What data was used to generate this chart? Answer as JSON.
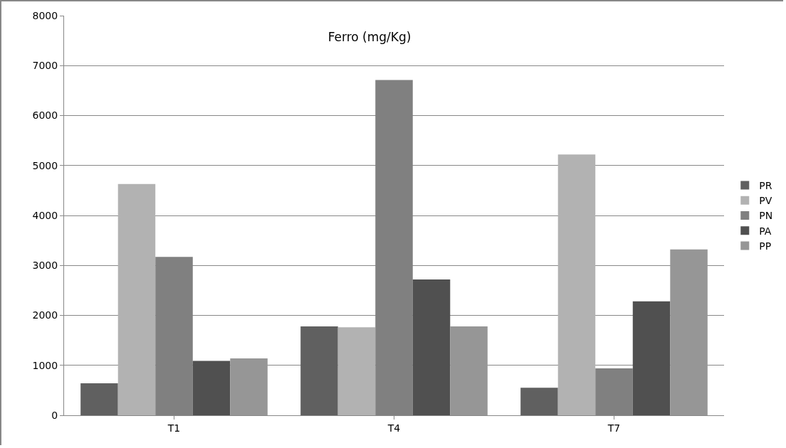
{
  "chart_data": {
    "type": "bar",
    "title": "Ferro (mg/Kg)",
    "categories": [
      "T1",
      "T4",
      "T7"
    ],
    "series": [
      {
        "name": "PR",
        "color": "#606060",
        "values": [
          640,
          1780,
          550
        ]
      },
      {
        "name": "PV",
        "color": "#b2b2b2",
        "values": [
          4630,
          1760,
          5220
        ]
      },
      {
        "name": "PN",
        "color": "#808080",
        "values": [
          3170,
          6710,
          940
        ]
      },
      {
        "name": "PA",
        "color": "#505050",
        "values": [
          1090,
          2720,
          2280
        ]
      },
      {
        "name": "PP",
        "color": "#969696",
        "values": [
          1140,
          1780,
          3320
        ]
      }
    ],
    "ylim": [
      0,
      8000
    ],
    "yticks": [
      0,
      1000,
      2000,
      3000,
      4000,
      5000,
      6000,
      7000,
      8000
    ],
    "grid": "y",
    "legend": "right"
  }
}
